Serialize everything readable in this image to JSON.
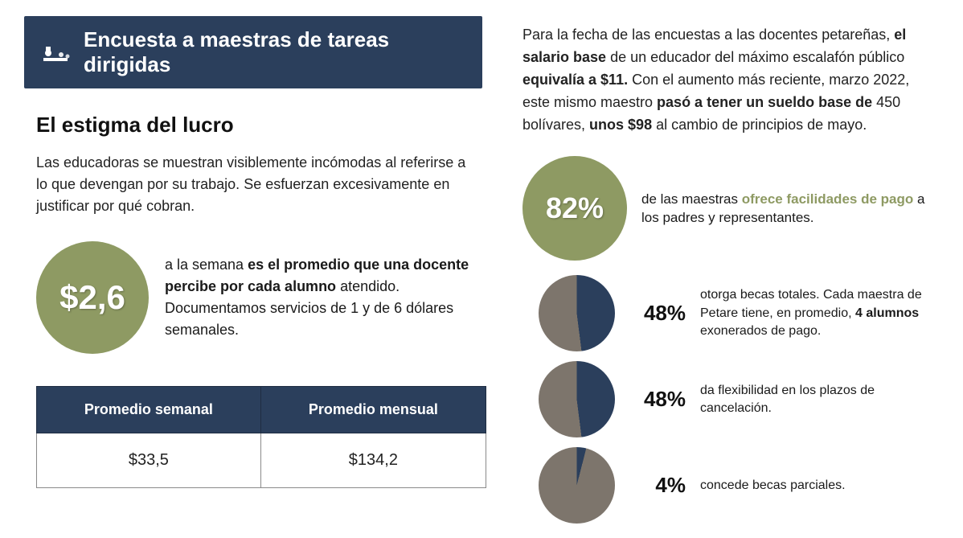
{
  "header": {
    "title": "Encuesta a maestras de tareas dirigidas"
  },
  "left": {
    "subtitle": "El estigma del lucro",
    "intro": "Las educadoras se muestran visiblemente incómodas al referirse a lo que devengan por su trabajo. Se esfuerzan excesivamente en justificar por qué cobran.",
    "stat_value": "$2,6",
    "stat_text_lead": "a la semana ",
    "stat_text_bold": "es el promedio que una docente percibe por cada alumno",
    "stat_text_tail": " atendido. Documentamos servicios de 1 y de 6 dólares semanales.",
    "table": {
      "header_weekly": "Promedio semanal",
      "header_monthly": "Promedio mensual",
      "value_weekly": "$33,5",
      "value_monthly": "$134,2"
    }
  },
  "right": {
    "intro_1a": "Para la fecha de las encuestas a las docentes petareñas, ",
    "intro_1b": "el salario base",
    "intro_1c": " de un educador del máximo escalafón público ",
    "intro_1d": "equivalía a $11.",
    "intro_1e": " Con el aumento más reciente, marzo 2022, este mismo maestro ",
    "intro_1f": "pasó a tener un sueldo base de",
    "intro_1g": " 450 bolívares, ",
    "intro_1h": "unos $98",
    "intro_1i": " al cambio de principios de mayo.",
    "fact82_value": "82%",
    "fact82_a": "de las maestras ",
    "fact82_hl": "ofrece facilidades de pago",
    "fact82_b": " a los padres y representantes.",
    "pies": [
      {
        "pct": 48,
        "pct_label": "48%",
        "text_a": "otorga becas totales. Cada maestra de Petare tiene, en promedio, ",
        "text_bold": "4 alumnos",
        "text_b": " exonerados de pago."
      },
      {
        "pct": 48,
        "pct_label": "48%",
        "text_a": "da flexibilidad en los plazos de cancelación.",
        "text_bold": "",
        "text_b": ""
      },
      {
        "pct": 4,
        "pct_label": "4%",
        "text_a": "concede becas parciales.",
        "text_bold": "",
        "text_b": ""
      }
    ]
  },
  "colors": {
    "header_bg": "#2b3f5c",
    "accent_green": "#8e9a63",
    "pie_fill": "#2b3f5c",
    "pie_rest": "#7d756c"
  }
}
